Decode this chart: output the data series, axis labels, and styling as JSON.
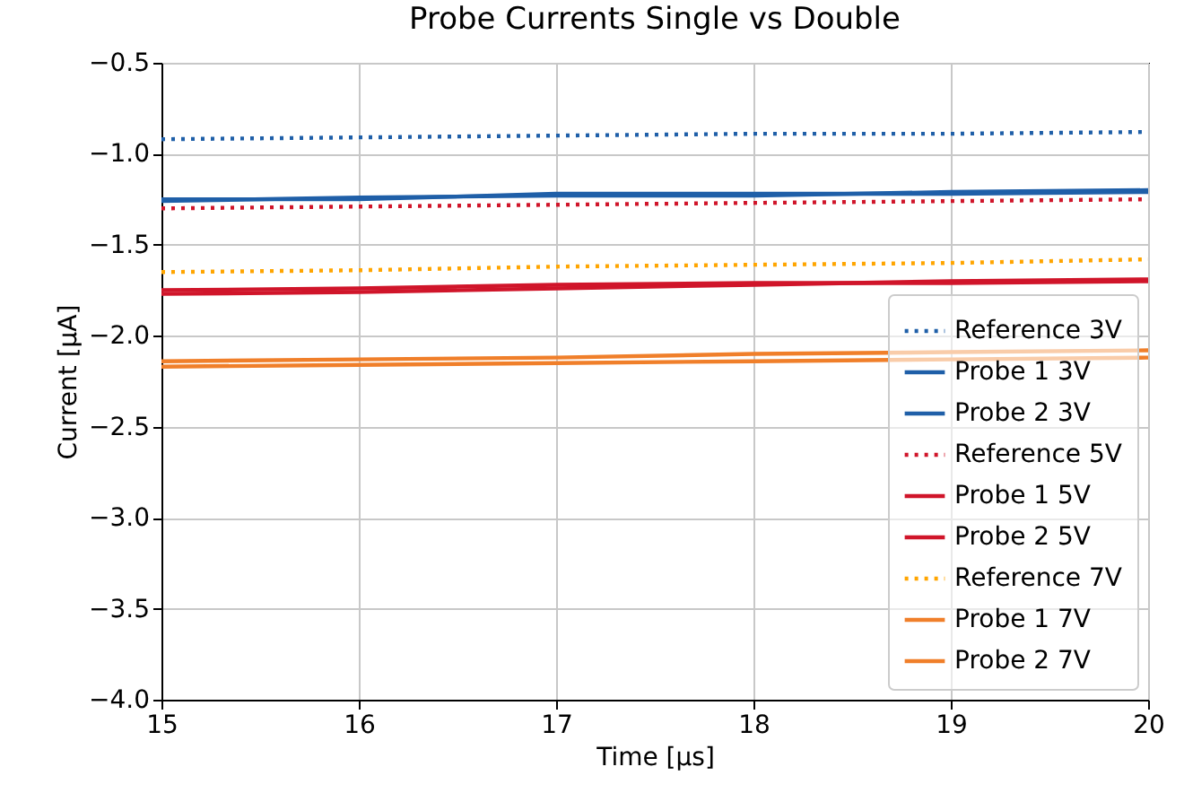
{
  "chart_data": {
    "type": "line",
    "title": "Probe Currents Single vs Double",
    "xlabel": "Time [µs]",
    "ylabel": "Current [µA]",
    "x": [
      15,
      16,
      17,
      18,
      19,
      20
    ],
    "xlim": [
      15,
      20
    ],
    "xticks": [
      15,
      16,
      17,
      18,
      19,
      20
    ],
    "ylim": [
      -4.0,
      -0.5
    ],
    "yticks": [
      {
        "value": -4.0,
        "label": "−4.0"
      },
      {
        "value": -3.5,
        "label": "−3.5"
      },
      {
        "value": -3.0,
        "label": "−3.0"
      },
      {
        "value": -2.5,
        "label": "−2.5"
      },
      {
        "value": -2.0,
        "label": "−2.0"
      },
      {
        "value": -1.5,
        "label": "−1.5"
      },
      {
        "value": -1.0,
        "label": "−1.0"
      },
      {
        "value": -0.5,
        "label": "−0.5"
      }
    ],
    "grid": true,
    "legend": "bottom right",
    "marker": "none",
    "series": [
      {
        "name": "Reference 3V",
        "color": "#1f5fa8",
        "line_style": "dotted",
        "values": [
          -0.92,
          -0.91,
          -0.9,
          -0.89,
          -0.89,
          -0.88
        ]
      },
      {
        "name": "Probe 1 3V",
        "color": "#1f5fa8",
        "line_style": "solid",
        "values": [
          -1.26,
          -1.24,
          -1.23,
          -1.23,
          -1.21,
          -1.2
        ]
      },
      {
        "name": "Probe 2 3V",
        "color": "#1f5fa8",
        "line_style": "solid",
        "values": [
          -1.25,
          -1.25,
          -1.22,
          -1.22,
          -1.22,
          -1.21
        ]
      },
      {
        "name": "Reference 5V",
        "color": "#d0152a",
        "line_style": "dotted",
        "values": [
          -1.3,
          -1.29,
          -1.28,
          -1.27,
          -1.26,
          -1.25
        ]
      },
      {
        "name": "Probe 1 5V",
        "color": "#d0152a",
        "line_style": "solid",
        "values": [
          -1.77,
          -1.76,
          -1.74,
          -1.72,
          -1.7,
          -1.69
        ]
      },
      {
        "name": "Probe 2 5V",
        "color": "#d0152a",
        "line_style": "solid",
        "values": [
          -1.75,
          -1.74,
          -1.72,
          -1.71,
          -1.71,
          -1.7
        ]
      },
      {
        "name": "Reference 7V",
        "color": "#ffa500",
        "line_style": "dotted",
        "values": [
          -1.65,
          -1.64,
          -1.62,
          -1.61,
          -1.6,
          -1.58
        ]
      },
      {
        "name": "Probe 1 7V",
        "color": "#f07f2a",
        "line_style": "solid",
        "values": [
          -2.14,
          -2.13,
          -2.12,
          -2.1,
          -2.09,
          -2.08
        ]
      },
      {
        "name": "Probe 2 7V",
        "color": "#f07f2a",
        "line_style": "solid",
        "values": [
          -2.17,
          -2.16,
          -2.15,
          -2.14,
          -2.13,
          -2.12
        ]
      }
    ]
  }
}
